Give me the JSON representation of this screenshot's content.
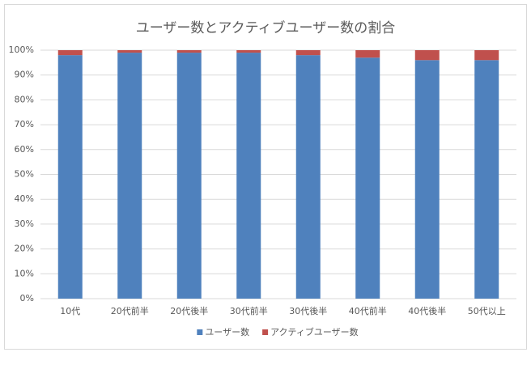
{
  "chart_data": {
    "type": "stacked_bar",
    "title": "ユーザー数とアクティブユーザー数の割合",
    "categories": [
      "10代",
      "20代前半",
      "20代後半",
      "30代前半",
      "30代後半",
      "40代前半",
      "40代後半",
      "50代以上"
    ],
    "series": [
      {
        "name": "ユーザー数",
        "color": "#4f81bd",
        "values": [
          98,
          99,
          99,
          99,
          98,
          97,
          96,
          96
        ]
      },
      {
        "name": "アクティブユーザー数",
        "color": "#c0504d",
        "values": [
          2,
          1,
          1,
          1,
          2,
          3,
          4,
          4
        ]
      }
    ],
    "ylim": [
      0,
      100
    ],
    "yticks": [
      {
        "value": 0,
        "label": "0%"
      },
      {
        "value": 10,
        "label": "10%"
      },
      {
        "value": 20,
        "label": "20%"
      },
      {
        "value": 30,
        "label": "30%"
      },
      {
        "value": 40,
        "label": "40%"
      },
      {
        "value": 50,
        "label": "50%"
      },
      {
        "value": 60,
        "label": "60%"
      },
      {
        "value": 70,
        "label": "70%"
      },
      {
        "value": 80,
        "label": "80%"
      },
      {
        "value": 90,
        "label": "90%"
      },
      {
        "value": 100,
        "label": "100%"
      }
    ],
    "grid": true,
    "legend": "bottom"
  }
}
